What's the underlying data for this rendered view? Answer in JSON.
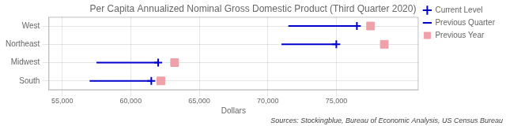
{
  "chart_data": {
    "type": "dot",
    "title": "Per Capita Annualized Nominal Gross Domestic Product (Third Quarter 2020)",
    "xlabel": "Dollars",
    "annotations": [
      "Sources: Stockingblue, Bureau of Economic Analysis, US Census Bureau"
    ],
    "categories": [
      "West",
      "Northeast",
      "Midwest",
      "South"
    ],
    "series": [
      {
        "name": "Current Level",
        "type": "scatter",
        "marker": "cross",
        "color": "#0000cc",
        "values": [
          76500,
          75000,
          62000,
          61500
        ]
      },
      {
        "name": "Previous Quarter",
        "type": "line",
        "line_style": "solid",
        "color": "#0000cc",
        "values": [
          71500,
          71000,
          57500,
          57000
        ]
      },
      {
        "name": "Previous Year",
        "type": "scatter",
        "marker": "square",
        "color": "#f0a0a8",
        "values": [
          77500,
          78500,
          63200,
          62200
        ]
      }
    ],
    "xlim": [
      54000,
      81000
    ],
    "xticks": [
      {
        "value": 55000,
        "label": "55,000"
      },
      {
        "value": 60000,
        "label": "60,000"
      },
      {
        "value": 65000,
        "label": "65,000"
      },
      {
        "value": 70000,
        "label": "70,000"
      },
      {
        "value": 75000,
        "label": "75,000"
      }
    ],
    "grid": true,
    "legend": "right"
  }
}
